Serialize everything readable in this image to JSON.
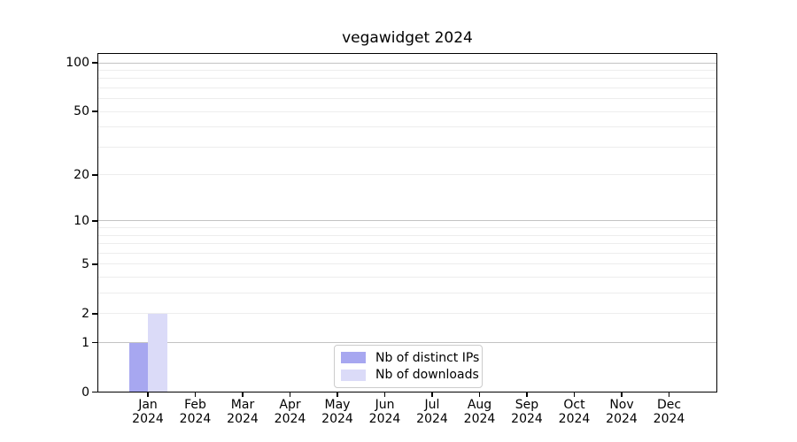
{
  "chart_data": {
    "type": "bar",
    "title": "vegawidget 2024",
    "categories": [
      "Jan",
      "Feb",
      "Mar",
      "Apr",
      "May",
      "Jun",
      "Jul",
      "Aug",
      "Sep",
      "Oct",
      "Nov",
      "Dec"
    ],
    "x_year_label": "2024",
    "series": [
      {
        "name": "Nb of distinct IPs",
        "color": "#a7a7f0",
        "values": [
          1,
          0,
          0,
          0,
          0,
          0,
          0,
          0,
          0,
          0,
          0,
          0
        ]
      },
      {
        "name": "Nb of downloads",
        "color": "#dbdbf8",
        "values": [
          2,
          0,
          0,
          0,
          0,
          0,
          0,
          0,
          0,
          0,
          0,
          0
        ]
      }
    ],
    "y_axis": {
      "scale": "log1p",
      "tick_values": [
        0,
        1,
        2,
        5,
        10,
        20,
        50,
        100
      ],
      "major_gridlines": [
        1,
        10,
        100
      ],
      "minor_gridlines": [
        2,
        3,
        4,
        5,
        6,
        7,
        8,
        9,
        20,
        30,
        40,
        50,
        60,
        70,
        80,
        90
      ],
      "range": [
        0,
        115
      ]
    },
    "grid": true,
    "legend_position": "bottom-center",
    "colors": {
      "grid_major": "#c3c3c3",
      "grid_minor": "#ededed",
      "spine": "#000000",
      "background": "#ffffff"
    }
  }
}
